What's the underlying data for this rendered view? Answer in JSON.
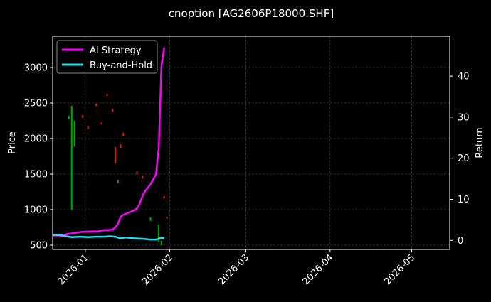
{
  "chart_data": {
    "type": "line",
    "title": "cnoption [AG2606P18000.SHF]",
    "xlabel": "",
    "ylabel_left": "Price",
    "ylabel_right": "Return",
    "x_ticks": [
      "2026-01",
      "2026-02",
      "2026-03",
      "2026-04",
      "2026-05"
    ],
    "x_tick_dates": [
      "2026-01-01",
      "2026-02-01",
      "2026-03-01",
      "2026-04-01",
      "2026-05-01"
    ],
    "xlim": [
      "2025-12-20",
      "2026-05-15"
    ],
    "y_left_ticks": [
      500,
      1000,
      1500,
      2000,
      2500,
      3000
    ],
    "y_left_lim": [
      440,
      3440
    ],
    "y_right_ticks": [
      0,
      10,
      20,
      30,
      40
    ],
    "y_right_lim": [
      -2.2,
      49.7
    ],
    "grid": true,
    "legend_position": "top-left",
    "series": [
      {
        "name": "AI Strategy",
        "color": "#ff00ff",
        "axis": "right",
        "points": [
          [
            "2025-12-20",
            1.2
          ],
          [
            "2025-12-24",
            1.1
          ],
          [
            "2025-12-25",
            1.5
          ],
          [
            "2025-12-28",
            1.8
          ],
          [
            "2025-12-31",
            2.1
          ],
          [
            "2026-01-04",
            2.2
          ],
          [
            "2026-01-06",
            2.2
          ],
          [
            "2026-01-07",
            2.4
          ],
          [
            "2026-01-08",
            2.5
          ],
          [
            "2026-01-09",
            2.5
          ],
          [
            "2026-01-11",
            2.6
          ],
          [
            "2026-01-12",
            3.2
          ],
          [
            "2026-01-13",
            4.0
          ],
          [
            "2026-01-14",
            5.8
          ],
          [
            "2026-01-15",
            6.2
          ],
          [
            "2026-01-17",
            6.8
          ],
          [
            "2026-01-19",
            7.3
          ],
          [
            "2026-01-20",
            7.8
          ],
          [
            "2026-01-21",
            9.0
          ],
          [
            "2026-01-22",
            10.8
          ],
          [
            "2026-01-23",
            12.0
          ],
          [
            "2026-01-25",
            13.7
          ],
          [
            "2026-01-27",
            16.1
          ],
          [
            "2026-01-28",
            22.5
          ],
          [
            "2026-01-29",
            42.5
          ],
          [
            "2026-01-30",
            47.0
          ]
        ]
      },
      {
        "name": "Buy-and-Hold",
        "color": "#22e0ee",
        "axis": "right",
        "points": [
          [
            "2025-12-20",
            1.3
          ],
          [
            "2025-12-23",
            1.3
          ],
          [
            "2025-12-25",
            1.0
          ],
          [
            "2025-12-27",
            0.8
          ],
          [
            "2025-12-30",
            0.9
          ],
          [
            "2026-01-02",
            0.8
          ],
          [
            "2026-01-05",
            0.9
          ],
          [
            "2026-01-08",
            0.9
          ],
          [
            "2026-01-10",
            1.0
          ],
          [
            "2026-01-12",
            0.9
          ],
          [
            "2026-01-14",
            0.5
          ],
          [
            "2026-01-16",
            0.7
          ],
          [
            "2026-01-19",
            0.5
          ],
          [
            "2026-01-22",
            0.4
          ],
          [
            "2026-01-25",
            0.2
          ],
          [
            "2026-01-27",
            0.2
          ],
          [
            "2026-01-28",
            0.4
          ],
          [
            "2026-01-29",
            0.6
          ],
          [
            "2026-01-30",
            0.5
          ]
        ]
      }
    ],
    "price_candles": {
      "axis": "left",
      "up_color": "#00aa00",
      "down_color": "#ee1111",
      "items": [
        {
          "date": "2025-12-26",
          "low": 2270,
          "high": 2320,
          "dir": "up"
        },
        {
          "date": "2025-12-27",
          "low": 1000,
          "high": 2460,
          "dir": "up"
        },
        {
          "date": "2025-12-28",
          "low": 1890,
          "high": 2250,
          "dir": "up"
        },
        {
          "date": "2025-12-31",
          "low": 2290,
          "high": 2330,
          "dir": "down"
        },
        {
          "date": "2026-01-02",
          "low": 2130,
          "high": 2180,
          "dir": "down"
        },
        {
          "date": "2026-01-05",
          "low": 2460,
          "high": 2490,
          "dir": "down"
        },
        {
          "date": "2026-01-07",
          "low": 2200,
          "high": 2230,
          "dir": "down"
        },
        {
          "date": "2026-01-09",
          "low": 2600,
          "high": 2630,
          "dir": "down"
        },
        {
          "date": "2026-01-11",
          "low": 2380,
          "high": 2420,
          "dir": "down"
        },
        {
          "date": "2026-01-12",
          "low": 1650,
          "high": 1880,
          "dir": "down"
        },
        {
          "date": "2026-01-13",
          "low": 1370,
          "high": 1420,
          "dir": "up"
        },
        {
          "date": "2026-01-14",
          "low": 1870,
          "high": 1920,
          "dir": "down"
        },
        {
          "date": "2026-01-15",
          "low": 2030,
          "high": 2080,
          "dir": "down"
        },
        {
          "date": "2026-01-20",
          "low": 1500,
          "high": 1540,
          "dir": "down"
        },
        {
          "date": "2026-01-22",
          "low": 1440,
          "high": 1480,
          "dir": "down"
        },
        {
          "date": "2026-01-25",
          "low": 840,
          "high": 890,
          "dir": "up"
        },
        {
          "date": "2026-01-28",
          "low": 540,
          "high": 790,
          "dir": "up"
        },
        {
          "date": "2026-01-29",
          "low": 500,
          "high": 560,
          "dir": "up"
        },
        {
          "date": "2026-01-30",
          "low": 1160,
          "high": 1190,
          "dir": "down"
        },
        {
          "date": "2026-01-31",
          "low": 870,
          "high": 900,
          "dir": "down"
        }
      ]
    }
  }
}
